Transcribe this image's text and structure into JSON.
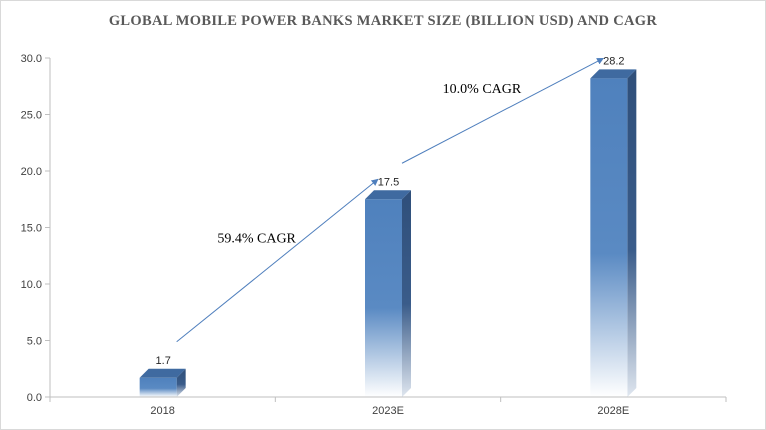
{
  "chart_data": {
    "type": "bar",
    "title": "GLOBAL MOBILE POWER BANKS MARKET SIZE (BILLION USD) AND CAGR",
    "categories": [
      "2018",
      "2023E",
      "2028E"
    ],
    "values": [
      1.7,
      17.5,
      28.2
    ],
    "data_labels": [
      "1.7",
      "17.5",
      "28.2"
    ],
    "xlabel": "",
    "ylabel": "",
    "ylim": [
      0,
      30
    ],
    "yticks": [
      "0.0",
      "5.0",
      "10.0",
      "15.0",
      "20.0",
      "25.0",
      "30.0"
    ],
    "grid": false,
    "legend": "none",
    "style": "3d-column",
    "annotations": [
      {
        "text": "59.4% CAGR",
        "from": "2018",
        "to": "2023E"
      },
      {
        "text": "10.0% CAGR",
        "from": "2023E",
        "to": "2028E"
      }
    ],
    "colors": {
      "bar_front": "#4f81bd",
      "bar_side": "#2f4f7a",
      "bar_top": "#3f6aa0",
      "arrow": "#4f7fbd",
      "axis": "#bfbfbf"
    }
  }
}
